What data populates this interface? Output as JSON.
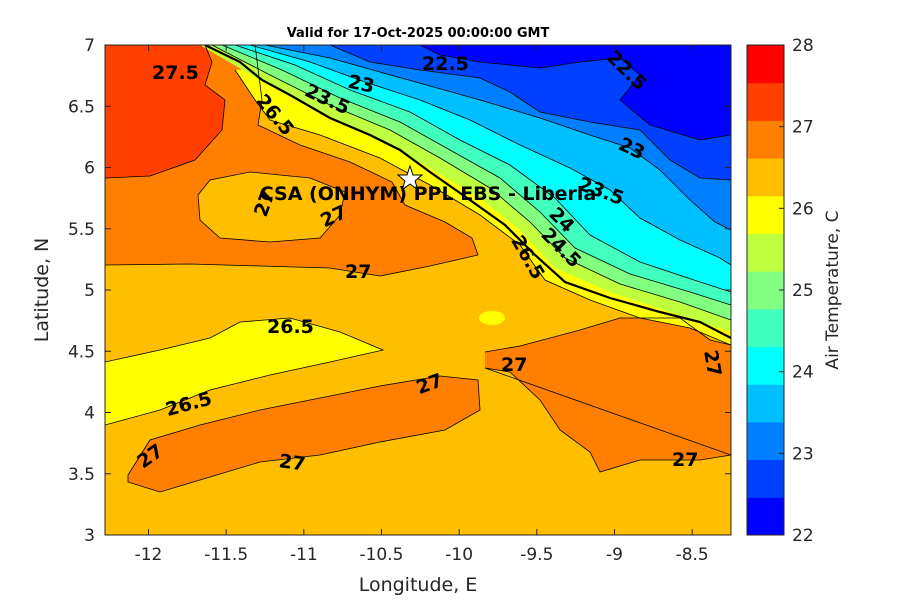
{
  "chart_data": {
    "type": "heatmap",
    "subtype": "filled-contour-map",
    "title": "Valid for 17-Oct-2025 00:00:00 GMT",
    "xlabel": "Longitude, E",
    "ylabel": "Latitude, N",
    "xlim": [
      -12.28,
      -8.25
    ],
    "ylim": [
      3,
      7
    ],
    "xticks": [
      "-12",
      "-11.5",
      "-11",
      "-10.5",
      "-10",
      "-9.5",
      "-9",
      "-8.5"
    ],
    "yticks": [
      "3",
      "3.5",
      "4",
      "4.5",
      "5",
      "5.5",
      "6",
      "6.5",
      "7"
    ],
    "colorbar": {
      "label": "Air Temperature, C",
      "range": [
        22,
        28
      ],
      "ticks": [
        "22",
        "23",
        "24",
        "25",
        "26",
        "27",
        "28"
      ],
      "colors": [
        "#0000ff",
        "#0040ff",
        "#0080ff",
        "#00bfff",
        "#00ffff",
        "#40ffbf",
        "#80ff80",
        "#bfff40",
        "#ffff00",
        "#ffbf00",
        "#ff8000",
        "#ff4000",
        "#ff0000"
      ]
    },
    "contour_labels": [
      "27.5",
      "22.5",
      "23",
      "22.5",
      "23",
      "23.5",
      "23.5",
      "27",
      "27",
      "27",
      "26.5",
      "26.5",
      "27",
      "27",
      "27",
      "27",
      "27",
      "27",
      "26.5",
      "24",
      "24.5",
      "26.5"
    ],
    "station": {
      "name": "CSA (ONHYM) PPL EBS  - Liberia",
      "lon": -10.3,
      "lat": 5.92
    }
  }
}
